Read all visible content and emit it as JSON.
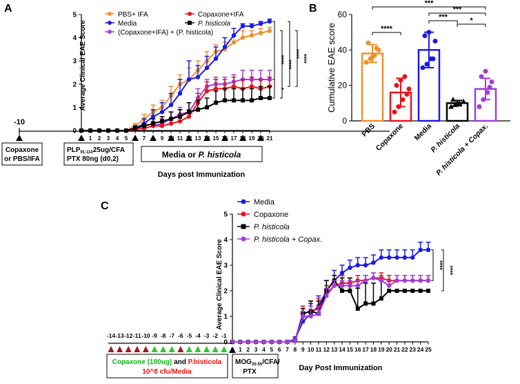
{
  "colors": {
    "pbs": "#f0902c",
    "copaxone": "#e8121c",
    "media": "#1a1ae8",
    "combo": "#a43cd8",
    "phisticola": "#000000",
    "tri_red": "#a01818",
    "tri_green": "#2cc82c",
    "tri_black": "#000000",
    "legend_green_text": "#10b010",
    "legend_red_text": "#e81010"
  },
  "panel_labels": {
    "a": "A",
    "b": "B",
    "c": "C"
  },
  "timeline_a": {
    "label_minus10": "-10",
    "box1_line1": "Copaxone",
    "box1_line2": "or PBS/IFA",
    "box2_prefix": "PLP",
    "box2_sub": "91-110",
    "box2_suffix": "25ug/CFA",
    "box2_line2": "PTX 80ng (d0,2)",
    "box3_prefix": "Media or ",
    "box3_italic": "P. histicola",
    "axis_title": "Days post Immunization",
    "gavage_days": [
      6,
      8,
      10,
      12,
      14,
      16,
      18,
      20
    ],
    "xticks": [
      "0",
      "1",
      "2",
      "3",
      "4",
      "5",
      "6",
      "7",
      "8",
      "9",
      "10",
      "11",
      "12",
      "13",
      "14",
      "15",
      "16",
      "17",
      "18",
      "19",
      "20",
      "21"
    ]
  },
  "timeline_c": {
    "ticks": [
      "-14",
      "-13",
      "-12",
      "-11",
      "-10",
      "-9",
      "-8",
      "-7",
      "-6",
      "-5",
      "-4",
      "-3",
      "-2",
      "-1"
    ],
    "tri_colors": [
      "red",
      "red",
      "red",
      "red",
      "red",
      "green",
      "green",
      "green",
      "red",
      "green",
      "green",
      "green",
      "green",
      "green"
    ],
    "box1_part1": "Copaxone (100ug)",
    "box1_and": " and ",
    "box1_part2": "P.histicola",
    "box1_line2": "10^8 cfu/Media",
    "box2_prefix": "MOG",
    "box2_sub": "35-55",
    "box2_suffix": "/CFA/",
    "box2_line2": "PTX",
    "axis_title": "Day Post Immunization"
  },
  "chart_data": [
    {
      "id": "A",
      "type": "line",
      "ylabel": "Average Clinical EAE Score",
      "xlabel": "Days post Immunization",
      "x": [
        0,
        1,
        2,
        3,
        4,
        5,
        6,
        7,
        8,
        9,
        10,
        11,
        12,
        13,
        14,
        15,
        16,
        17,
        18,
        19,
        20,
        21
      ],
      "xlim": [
        0,
        21
      ],
      "ylim": [
        0,
        5
      ],
      "yticks": [
        "0",
        "1",
        "2",
        "3",
        "4",
        "5"
      ],
      "legend": {
        "placement": "top-left"
      },
      "series": [
        {
          "name": "PBS+ IFA",
          "marker": "circle",
          "color_key": "pbs",
          "values": [
            0,
            0,
            0,
            0,
            0,
            0,
            0.2,
            0.5,
            0.8,
            1.0,
            1.5,
            2.0,
            2.2,
            2.6,
            3.0,
            3.4,
            3.5,
            3.8,
            4.0,
            4.1,
            4.2,
            4.3
          ],
          "errors": [
            0,
            0,
            0,
            0,
            0,
            0,
            0.1,
            0.2,
            0.3,
            0.3,
            0.4,
            0.4,
            0.5,
            0.4,
            0.4,
            0.3,
            0.3,
            0.3,
            0.3,
            0.2,
            0.2,
            0.15
          ]
        },
        {
          "name": "Media",
          "marker": "circle",
          "color_key": "media",
          "values": [
            0,
            0,
            0,
            0,
            0,
            0,
            0.1,
            0.3,
            0.6,
            0.8,
            1.1,
            1.6,
            2.2,
            2.3,
            2.7,
            3.1,
            3.6,
            4.1,
            4.5,
            4.5,
            4.6,
            4.7
          ],
          "errors": [
            0,
            0,
            0,
            0,
            0,
            0,
            0.1,
            0.2,
            0.3,
            0.4,
            0.5,
            0.6,
            0.8,
            0.5,
            0.5,
            0.5,
            0.4,
            0.3,
            0.1,
            0.1,
            0.1,
            0.1
          ]
        },
        {
          "name": "(Copaxone+IFA) + (P. histicola)",
          "marker": "circle",
          "color_key": "combo",
          "values": [
            0,
            0,
            0,
            0,
            0,
            0,
            0.05,
            0.1,
            0.2,
            0.3,
            0.5,
            0.7,
            0.8,
            1.4,
            1.9,
            2.0,
            2.0,
            2.1,
            2.2,
            2.2,
            2.2,
            2.2
          ],
          "errors": [
            0,
            0,
            0,
            0,
            0,
            0,
            0.05,
            0.1,
            0.2,
            0.2,
            0.3,
            0.3,
            0.4,
            0.4,
            0.3,
            0.3,
            0.3,
            0.3,
            0.4,
            0.4,
            0.4,
            0.4
          ]
        },
        {
          "name": "Copaxone+IFA",
          "marker": "circle",
          "color_key": "copaxone",
          "values": [
            0,
            0,
            0,
            0,
            0,
            0,
            0.05,
            0.1,
            0.2,
            0.2,
            0.3,
            0.4,
            0.6,
            1.2,
            1.7,
            1.8,
            1.8,
            1.9,
            1.8,
            1.9,
            1.8,
            1.9
          ],
          "errors": [
            0,
            0,
            0,
            0,
            0,
            0,
            0.05,
            0.1,
            0.1,
            0.2,
            0.2,
            0.3,
            0.3,
            0.4,
            0.4,
            0.4,
            0.4,
            0.4,
            0.4,
            0.4,
            0.4,
            0.4
          ]
        },
        {
          "name": "P. histicola",
          "marker": "square",
          "color_key": "phisticola",
          "values": [
            0,
            0,
            0,
            0,
            0,
            0,
            0.1,
            0.2,
            0.3,
            0.4,
            0.5,
            0.6,
            0.8,
            0.9,
            1.0,
            1.2,
            1.3,
            1.3,
            1.3,
            1.3,
            1.4,
            1.4
          ],
          "errors": [
            0,
            0,
            0,
            0,
            0,
            0,
            0.1,
            0.1,
            0.2,
            0.2,
            0.3,
            0.3,
            0.4,
            0.4,
            0.4,
            0.5,
            0.5,
            0.5,
            0.5,
            0.5,
            0.5,
            0.5
          ]
        }
      ],
      "significance": [
        {
          "label": "****"
        },
        {
          "label": "****"
        },
        {
          "label": "****"
        },
        {
          "label": "****"
        },
        {
          "label": "*"
        }
      ]
    },
    {
      "id": "B",
      "type": "bar",
      "ylabel": "Cumulative EAE score",
      "categories": [
        "PBS",
        "Copaxone",
        "Media",
        "P. histicola",
        "P. histicola + Copax."
      ],
      "category_italic": [
        false,
        false,
        false,
        true,
        true
      ],
      "color_keys": [
        "pbs",
        "copaxone",
        "media",
        "phisticola",
        "combo"
      ],
      "values": [
        38,
        16,
        40,
        10,
        18
      ],
      "errors": [
        5,
        8,
        10,
        1.5,
        6
      ],
      "points": [
        [
          33,
          35,
          37,
          40,
          44,
          36,
          41
        ],
        [
          5,
          8,
          12,
          15,
          20,
          23,
          25,
          18
        ],
        [
          30,
          32,
          35,
          45,
          48,
          50,
          35
        ],
        [
          8,
          9,
          10,
          11,
          12,
          10
        ],
        [
          8,
          12,
          16,
          22,
          25,
          28,
          19
        ]
      ],
      "ylim": [
        0,
        60
      ],
      "yticks": [
        "0",
        "20",
        "40",
        "60"
      ],
      "significance": [
        {
          "from": 0,
          "to": 1,
          "label": "****"
        },
        {
          "from": 0,
          "to": 4,
          "label": "***"
        },
        {
          "from": 2,
          "to": 4,
          "label": "***"
        },
        {
          "from": 2,
          "to": 3,
          "label": "***"
        },
        {
          "from": 3,
          "to": 4,
          "label": "*"
        }
      ]
    },
    {
      "id": "C",
      "type": "line",
      "ylabel": "Average Clinical EAE Score",
      "xlabel": "Day Post Immunization",
      "x": [
        0,
        1,
        2,
        3,
        4,
        5,
        6,
        7,
        8,
        9,
        10,
        11,
        12,
        13,
        14,
        15,
        16,
        17,
        18,
        19,
        20,
        21,
        22,
        23,
        24,
        25
      ],
      "xticks": [
        "0",
        "1",
        "2",
        "3",
        "4",
        "5",
        "6",
        "7",
        "8",
        "9",
        "10",
        "11",
        "12",
        "13",
        "14",
        "15",
        "16",
        "17",
        "18",
        "19",
        "20",
        "21",
        "22",
        "23",
        "24",
        "25"
      ],
      "xlim": [
        0,
        25
      ],
      "ylim": [
        0,
        5
      ],
      "yticks": [
        "0",
        "1",
        "2",
        "3",
        "4",
        "5"
      ],
      "legend": {
        "placement": "top-left"
      },
      "series": [
        {
          "name": "Media",
          "marker": "circle",
          "color_key": "media",
          "values": [
            0,
            0,
            0,
            0,
            0,
            0,
            0,
            0,
            0.1,
            0.8,
            1.1,
            1.4,
            2.0,
            2.4,
            2.7,
            2.9,
            3.0,
            3.0,
            3.1,
            3.3,
            3.3,
            3.3,
            3.3,
            3.3,
            3.6,
            3.6
          ],
          "errors": [
            0,
            0,
            0,
            0,
            0,
            0,
            0,
            0,
            0.1,
            0.3,
            0.4,
            0.4,
            0.4,
            0.4,
            0.3,
            0.3,
            0.3,
            0.3,
            0.3,
            0.3,
            0.3,
            0.3,
            0.3,
            0.3,
            0.3,
            0.3
          ]
        },
        {
          "name": "Copaxone",
          "marker": "circle",
          "color_key": "copaxone",
          "values": [
            0,
            0,
            0,
            0,
            0,
            0,
            0,
            0,
            0.05,
            1.1,
            1.2,
            1.3,
            1.9,
            2.2,
            2.3,
            2.3,
            2.4,
            2.4,
            2.5,
            2.5,
            2.4,
            2.4,
            2.4,
            2.4,
            2.4,
            2.4
          ],
          "errors": [
            0,
            0,
            0,
            0,
            0,
            0,
            0,
            0,
            0.05,
            0.3,
            0.4,
            0.4,
            0.3,
            0.2,
            0.3,
            0.2,
            0.2,
            0.2,
            0.2,
            0.2,
            0.2,
            0.2,
            0.2,
            0.2,
            0.2,
            0.2
          ]
        },
        {
          "name": "P. histicola",
          "marker": "square",
          "color_key": "phisticola",
          "values": [
            0,
            0,
            0,
            0,
            0,
            0,
            0,
            0,
            0.05,
            1.1,
            1.2,
            1.1,
            2.0,
            2.4,
            2.0,
            2.0,
            1.3,
            1.5,
            1.5,
            1.7,
            2.0,
            2.0,
            2.0,
            2.0,
            2.0,
            2.0
          ],
          "errors": [
            0,
            0,
            0,
            0,
            0,
            0,
            0,
            0,
            0.05,
            0.2,
            0.4,
            0.5,
            0.4,
            0.2,
            0.5,
            0.5,
            0.8,
            0.8,
            0.8,
            0.7,
            0,
            0,
            0,
            0,
            0,
            0
          ]
        },
        {
          "name": "P. histicola + Copax.",
          "marker": "circle",
          "color_key": "combo",
          "values": [
            0,
            0,
            0,
            0,
            0,
            0,
            0,
            0,
            0.05,
            1.0,
            1.0,
            1.1,
            1.8,
            2.2,
            2.2,
            2.2,
            2.2,
            2.4,
            2.5,
            2.4,
            2.2,
            2.4,
            2.4,
            2.4,
            2.4,
            2.4
          ],
          "errors": [
            0,
            0,
            0,
            0,
            0,
            0,
            0,
            0,
            0.05,
            0.2,
            0.4,
            0.3,
            0.3,
            0.2,
            0.2,
            0.2,
            0.2,
            0.2,
            0.2,
            0.2,
            0.2,
            0.2,
            0.2,
            0.2,
            0.2,
            0.2
          ]
        }
      ],
      "significance": [
        {
          "label": "****"
        },
        {
          "label": "****"
        }
      ]
    }
  ]
}
